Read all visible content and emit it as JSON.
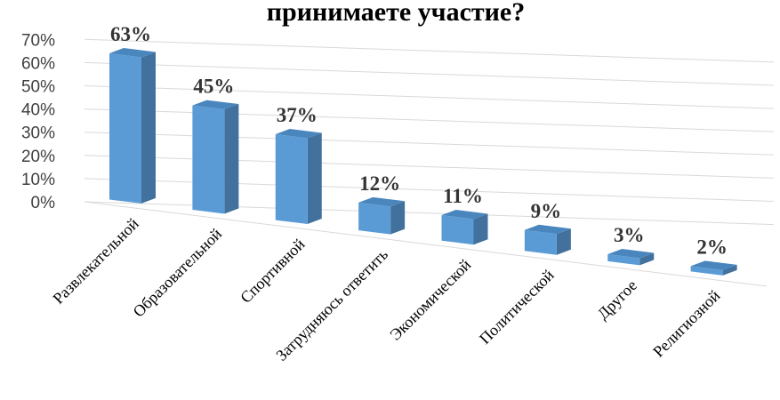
{
  "chart_data": {
    "type": "bar",
    "title": "принимаете участие?",
    "categories": [
      "Развлекательной",
      "Образовательной",
      "Спортивной",
      "Затрудняюсь ответить",
      "Экономической",
      "Политической",
      "Другое",
      "Религиозной"
    ],
    "values": [
      63,
      45,
      37,
      12,
      11,
      9,
      3,
      2
    ],
    "data_labels": [
      "63%",
      "45%",
      "37%",
      "12%",
      "11%",
      "9%",
      "3%",
      "2%"
    ],
    "y_ticks": [
      "0%",
      "10%",
      "20%",
      "30%",
      "40%",
      "50%",
      "60%",
      "70%"
    ],
    "ylim": [
      0,
      70
    ],
    "grid": true,
    "legend": "none",
    "colors": {
      "bar_front": "#5b9bd5",
      "bar_side": "#41719c",
      "bar_top": "#4a86be"
    }
  }
}
